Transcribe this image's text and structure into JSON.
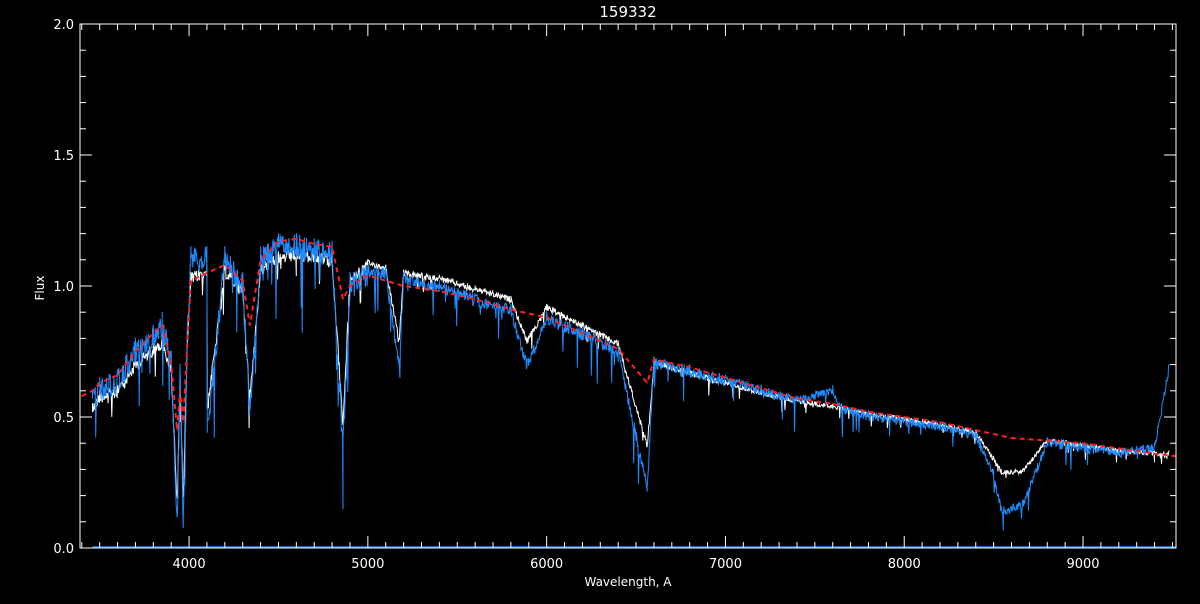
{
  "chart_data": {
    "type": "line",
    "title": "159332",
    "xlabel": "Wavelength, A",
    "ylabel": "Flux",
    "xlim": [
      3390,
      9520
    ],
    "ylim": [
      0.0,
      2.0
    ],
    "xticks": [
      4000,
      5000,
      6000,
      7000,
      8000,
      9000
    ],
    "xtick_labels": [
      "4000",
      "5000",
      "6000",
      "7000",
      "8000",
      "9000"
    ],
    "yticks": [
      0.0,
      0.5,
      1.0,
      1.5,
      2.0
    ],
    "ytick_labels": [
      "0.0",
      "0.5",
      "1.0",
      "1.5",
      "2.0"
    ],
    "grid": false,
    "background": "#000000",
    "series": [
      {
        "color": "#ffffff",
        "style": "solid",
        "x": [
          3460,
          3500,
          3600,
          3700,
          3800,
          3850,
          3900,
          3933,
          3950,
          3968,
          3990,
          4010,
          4100,
          4102,
          4200,
          4300,
          4340,
          4400,
          4500,
          4600,
          4700,
          4800,
          4861,
          4900,
          5000,
          5100,
          5175,
          5200,
          5400,
          5600,
          5800,
          5890,
          6000,
          6200,
          6400,
          6563,
          6600,
          6800,
          7000,
          7200,
          7400,
          7600,
          7800,
          8000,
          8200,
          8400,
          8498,
          8542,
          8662,
          8800,
          9000,
          9200,
          9400,
          9480
        ],
        "y": [
          0.55,
          0.6,
          0.62,
          0.72,
          0.78,
          0.8,
          0.7,
          0.2,
          0.65,
          0.2,
          0.8,
          1.05,
          1.08,
          0.55,
          1.08,
          1.0,
          0.6,
          1.08,
          1.13,
          1.14,
          1.13,
          1.12,
          0.5,
          1.05,
          1.1,
          1.08,
          0.8,
          1.06,
          1.04,
          1.0,
          0.96,
          0.8,
          0.93,
          0.86,
          0.79,
          0.4,
          0.72,
          0.68,
          0.64,
          0.6,
          0.57,
          0.55,
          0.52,
          0.5,
          0.48,
          0.45,
          0.35,
          0.3,
          0.3,
          0.42,
          0.4,
          0.38,
          0.37,
          0.37
        ]
      },
      {
        "color": "#1e8cff",
        "style": "solid",
        "x": [
          3460,
          3500,
          3600,
          3700,
          3800,
          3850,
          3900,
          3933,
          3950,
          3968,
          3990,
          4010,
          4100,
          4102,
          4200,
          4300,
          4340,
          4400,
          4500,
          4600,
          4700,
          4800,
          4861,
          4900,
          5000,
          5100,
          5175,
          5200,
          5400,
          5600,
          5800,
          5890,
          6000,
          6200,
          6400,
          6563,
          6600,
          6800,
          7000,
          7200,
          7400,
          7600,
          7650,
          7800,
          8000,
          8200,
          8400,
          8498,
          8542,
          8662,
          8800,
          9000,
          9200,
          9400,
          9480
        ],
        "y": [
          0.6,
          0.65,
          0.68,
          0.8,
          0.85,
          0.9,
          0.75,
          0.12,
          0.7,
          0.13,
          0.85,
          1.15,
          1.15,
          0.49,
          1.15,
          1.05,
          0.55,
          1.15,
          1.2,
          1.2,
          1.18,
          1.17,
          0.42,
          1.05,
          1.08,
          1.07,
          0.72,
          1.05,
          1.02,
          0.97,
          0.93,
          0.72,
          0.9,
          0.84,
          0.77,
          0.25,
          0.73,
          0.7,
          0.66,
          0.62,
          0.58,
          0.62,
          0.55,
          0.52,
          0.5,
          0.48,
          0.45,
          0.3,
          0.16,
          0.18,
          0.42,
          0.4,
          0.38,
          0.4,
          0.7
        ]
      },
      {
        "color": "#ff2020",
        "style": "dashed",
        "x": [
          3400,
          3460,
          3500,
          3600,
          3700,
          3800,
          3850,
          3900,
          3933,
          3950,
          3968,
          3990,
          4010,
          4100,
          4200,
          4300,
          4340,
          4400,
          4500,
          4600,
          4700,
          4800,
          4861,
          4900,
          5000,
          5200,
          5400,
          5600,
          5800,
          6000,
          6200,
          6400,
          6563,
          6600,
          6800,
          7000,
          7200,
          7400,
          7600,
          7800,
          8000,
          8200,
          8400,
          8600,
          8800,
          9000,
          9200,
          9400,
          9520
        ],
        "y": [
          0.58,
          0.6,
          0.63,
          0.66,
          0.75,
          0.82,
          0.85,
          0.7,
          0.45,
          0.6,
          0.48,
          0.78,
          1.02,
          1.05,
          1.08,
          1.02,
          0.85,
          1.1,
          1.17,
          1.18,
          1.16,
          1.15,
          0.95,
          1.0,
          1.04,
          1.0,
          0.98,
          0.95,
          0.91,
          0.88,
          0.82,
          0.76,
          0.63,
          0.72,
          0.69,
          0.65,
          0.61,
          0.57,
          0.55,
          0.52,
          0.5,
          0.48,
          0.45,
          0.42,
          0.41,
          0.4,
          0.38,
          0.36,
          0.35
        ]
      }
    ]
  }
}
